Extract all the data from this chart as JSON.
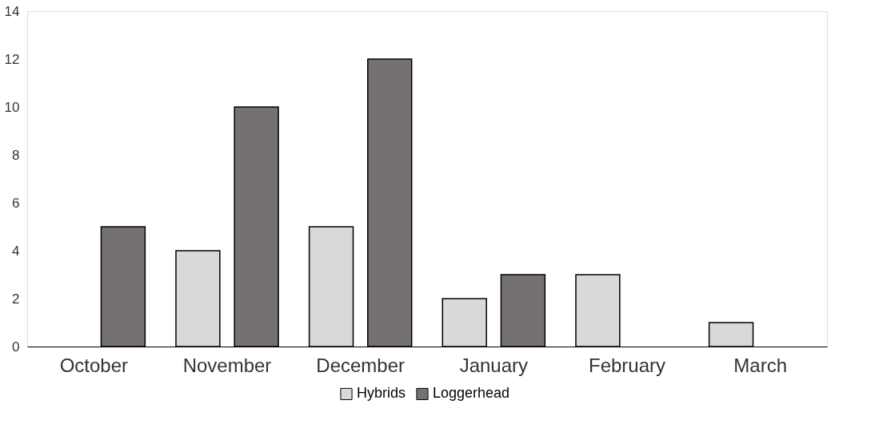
{
  "chart_data": {
    "type": "bar",
    "categories": [
      "October",
      "November",
      "December",
      "January",
      "February",
      "March"
    ],
    "series": [
      {
        "name": "Hybrids",
        "color": "#d9d9d9",
        "values": [
          null,
          4,
          5,
          2,
          3,
          1
        ]
      },
      {
        "name": "Loggerhead",
        "color": "#767171",
        "values": [
          5,
          10,
          12,
          3,
          null,
          null
        ]
      }
    ],
    "ylim": [
      0,
      14
    ],
    "yticks": [
      0,
      2,
      4,
      6,
      8,
      10,
      12,
      14
    ],
    "grid": false,
    "legend": "bottom"
  }
}
